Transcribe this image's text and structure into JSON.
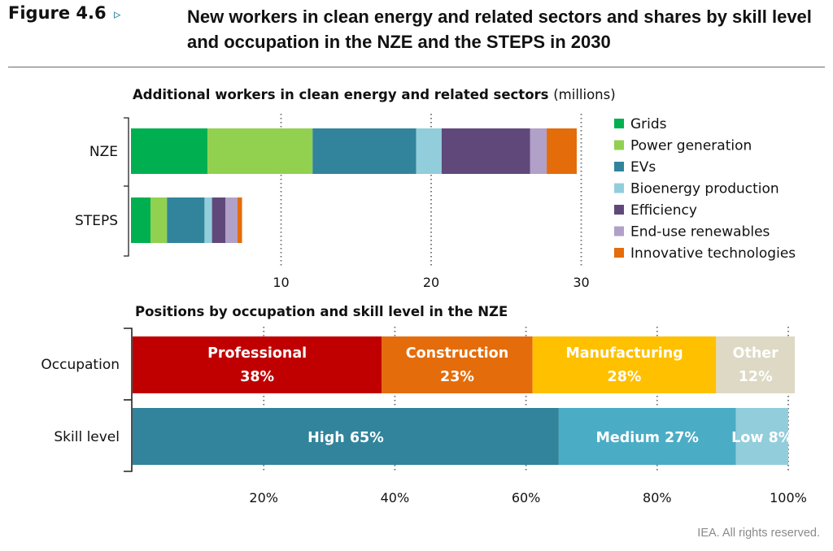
{
  "header": {
    "figure_label": "Figure 4.6",
    "figure_arrow": "▹",
    "title": "New workers in clean energy and related sectors and shares by skill level and occupation in the NZE and the STEPS in 2030"
  },
  "footer": {
    "rights": "IEA. All rights reserved."
  },
  "colors": {
    "Grids": "#00b050",
    "Power generation": "#92d050",
    "EVs": "#31849b",
    "Bioenergy production": "#92cddc",
    "Efficiency": "#60497a",
    "End-use renewables": "#b1a0c7",
    "Innovative technologies": "#e46c0a",
    "Professional": "#c00000",
    "Construction": "#e46c0a",
    "Manufacturing": "#ffc000",
    "Other": "#ddd9c4",
    "High": "#31849b",
    "Medium": "#4bacc6",
    "Low": "#92cddc"
  },
  "chart_data": [
    {
      "type": "bar",
      "orientation": "horizontal",
      "stacked": true,
      "title": "Additional workers in clean energy and related sectors",
      "title_unit": "(millions)",
      "categories": [
        "NZE",
        "STEPS"
      ],
      "xlim": [
        0,
        30
      ],
      "xticks": [
        10,
        20,
        30
      ],
      "grid": "dotted vertical at ticks",
      "legend_position": "right",
      "series": [
        {
          "name": "Grids",
          "values": [
            5.1,
            1.3
          ]
        },
        {
          "name": "Power generation",
          "values": [
            7.0,
            1.1
          ]
        },
        {
          "name": "EVs",
          "values": [
            6.9,
            2.5
          ]
        },
        {
          "name": "Bioenergy production",
          "values": [
            1.7,
            0.5
          ]
        },
        {
          "name": "Efficiency",
          "values": [
            5.9,
            0.9
          ]
        },
        {
          "name": "End-use renewables",
          "values": [
            1.1,
            0.8
          ]
        },
        {
          "name": "Innovative technologies",
          "values": [
            2.0,
            0.3
          ]
        }
      ]
    },
    {
      "type": "bar",
      "orientation": "horizontal",
      "stacked": true,
      "percent": true,
      "title": "Positions by occupation and skill level in the NZE",
      "categories": [
        "Occupation",
        "Skill level"
      ],
      "xlim": [
        0,
        100
      ],
      "xticks": [
        "20%",
        "40%",
        "60%",
        "80%",
        "100%"
      ],
      "grid": "dotted vertical at ticks",
      "rows": [
        {
          "category": "Occupation",
          "segments": [
            {
              "name": "Professional",
              "value": 38,
              "label_line1": "Professional",
              "label_line2": "38%"
            },
            {
              "name": "Construction",
              "value": 23,
              "label_line1": "Construction",
              "label_line2": "23%"
            },
            {
              "name": "Manufacturing",
              "value": 28,
              "label_line1": "Manufacturing",
              "label_line2": "28%"
            },
            {
              "name": "Other",
              "value": 12,
              "label_line1": "Other",
              "label_line2": "12%"
            }
          ]
        },
        {
          "category": "Skill level",
          "segments": [
            {
              "name": "High",
              "value": 65,
              "label_line1": "High 65%"
            },
            {
              "name": "Medium",
              "value": 27,
              "label_line1": "Medium 27%"
            },
            {
              "name": "Low",
              "value": 8,
              "label_line1": "Low 8%"
            }
          ]
        }
      ]
    }
  ]
}
